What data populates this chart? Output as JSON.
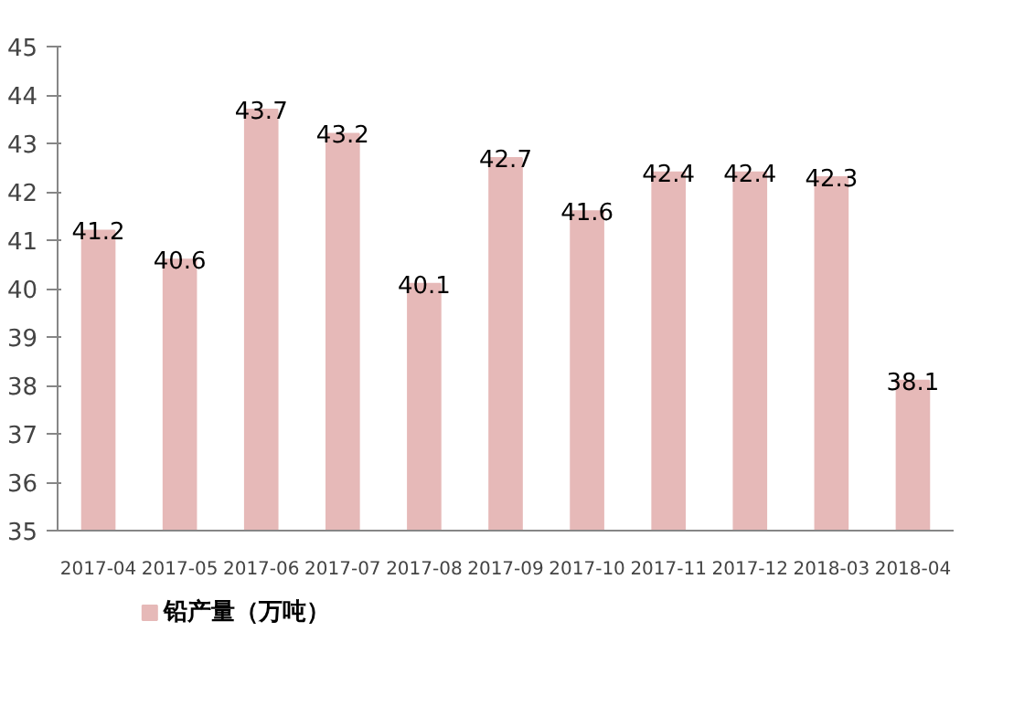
{
  "chart_data": {
    "type": "bar",
    "categories": [
      "2017-04",
      "2017-05",
      "2017-06",
      "2017-07",
      "2017-08",
      "2017-09",
      "2017-10",
      "2017-11",
      "2017-12",
      "2018-03",
      "2018-04"
    ],
    "series": [
      {
        "name": "铅产量（万吨）",
        "color": "#e6b9b8",
        "values": [
          41.2,
          40.6,
          43.7,
          43.2,
          40.1,
          42.7,
          41.6,
          42.4,
          42.4,
          42.3,
          38.1
        ]
      }
    ],
    "ylim": [
      35,
      45
    ],
    "yticks": [
      35,
      36,
      37,
      38,
      39,
      40,
      41,
      42,
      43,
      44,
      45
    ],
    "data_labels": true,
    "grid": false,
    "legend": "bottom left"
  }
}
